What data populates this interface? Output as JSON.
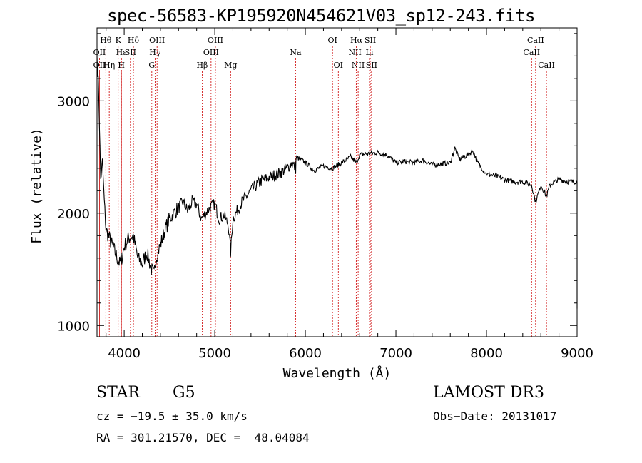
{
  "header": {
    "title": "spec-56583-KP195920N454621V03_sp12-243.fits"
  },
  "info": {
    "object_class": "STAR",
    "subclass": "G5",
    "survey": "LAMOST DR3",
    "redshift_line": "cz = −19.5 ± 35.0 km/s",
    "obs_date_line": "Obs−Date: 20131017",
    "coord_line": "RA = 301.21570, DEC =  48.04084"
  },
  "chart_data": {
    "type": "line",
    "xlabel": "Wavelength (Å)",
    "ylabel": "Flux (relative)",
    "xlim": [
      3700,
      9000
    ],
    "ylim": [
      900,
      3650
    ],
    "x_ticks": [
      4000,
      5000,
      6000,
      7000,
      8000,
      9000
    ],
    "y_ticks": [
      1000,
      2000,
      3000
    ],
    "grid": false,
    "line_color": "#000000",
    "marker_color": "#cc0000",
    "lines": [
      {
        "label": "Hθ",
        "x": 3797,
        "row": 0
      },
      {
        "label": "OII",
        "x": 3727,
        "row": 1
      },
      {
        "label": "OII",
        "x": 3727,
        "row": 2
      },
      {
        "label": "K",
        "x": 3934,
        "row": 0
      },
      {
        "label": "Hε",
        "x": 3970,
        "row": 1
      },
      {
        "label": "SII",
        "x": 4069,
        "row": 1
      },
      {
        "label": "Hη",
        "x": 3835,
        "row": 2
      },
      {
        "label": "H",
        "x": 3969,
        "row": 2
      },
      {
        "label": "Hδ",
        "x": 4102,
        "row": 0
      },
      {
        "label": "OIII",
        "x": 4363,
        "row": 0
      },
      {
        "label": "Hγ",
        "x": 4341,
        "row": 1
      },
      {
        "label": "G",
        "x": 4305,
        "row": 2
      },
      {
        "label": "Hβ",
        "x": 4861,
        "row": 2
      },
      {
        "label": "OIII",
        "x": 5007,
        "row": 0
      },
      {
        "label": "OIII",
        "x": 4959,
        "row": 1
      },
      {
        "label": "Mg",
        "x": 5175,
        "row": 2
      },
      {
        "label": "Na",
        "x": 5893,
        "row": 1
      },
      {
        "label": "OI",
        "x": 6300,
        "row": 0
      },
      {
        "label": "OI",
        "x": 6364,
        "row": 2
      },
      {
        "label": "Hα",
        "x": 6563,
        "row": 0
      },
      {
        "label": "NII",
        "x": 6548,
        "row": 1
      },
      {
        "label": "NII",
        "x": 6583,
        "row": 2
      },
      {
        "label": "SII",
        "x": 6717,
        "row": 0
      },
      {
        "label": "Li",
        "x": 6708,
        "row": 1
      },
      {
        "label": "SII",
        "x": 6731,
        "row": 2
      },
      {
        "label": "CaII",
        "x": 8542,
        "row": 0
      },
      {
        "label": "CaII",
        "x": 8498,
        "row": 1
      },
      {
        "label": "CaII",
        "x": 8662,
        "row": 2
      }
    ],
    "spectrum": {
      "x": [
        3700,
        3720,
        3740,
        3760,
        3780,
        3800,
        3850,
        3900,
        3950,
        3980,
        4000,
        4050,
        4100,
        4150,
        4200,
        4250,
        4300,
        4330,
        4350,
        4400,
        4450,
        4500,
        4550,
        4600,
        4650,
        4700,
        4750,
        4800,
        4850,
        4900,
        4950,
        5000,
        5050,
        5100,
        5150,
        5175,
        5200,
        5300,
        5400,
        5500,
        5600,
        5700,
        5800,
        5850,
        5893,
        5900,
        6000,
        6100,
        6200,
        6300,
        6400,
        6500,
        6563,
        6600,
        6700,
        6800,
        6900,
        7000,
        7100,
        7200,
        7300,
        7400,
        7500,
        7600,
        7650,
        7700,
        7800,
        7850,
        7900,
        8000,
        8100,
        8200,
        8300,
        8400,
        8498,
        8542,
        8600,
        8662,
        8700,
        8800,
        8900,
        9000
      ],
      "y": [
        3400,
        3050,
        2300,
        2450,
        2100,
        1850,
        1750,
        1650,
        1550,
        1620,
        1700,
        1780,
        1800,
        1600,
        1550,
        1650,
        1500,
        1450,
        1600,
        1720,
        1850,
        1950,
        2000,
        2050,
        2100,
        2020,
        2100,
        2080,
        1950,
        2000,
        2050,
        2080,
        1950,
        1980,
        1900,
        1650,
        1950,
        2100,
        2200,
        2280,
        2320,
        2350,
        2400,
        2450,
        2400,
        2500,
        2450,
        2380,
        2420,
        2400,
        2450,
        2500,
        2450,
        2520,
        2530,
        2540,
        2520,
        2450,
        2460,
        2450,
        2470,
        2430,
        2440,
        2450,
        2580,
        2480,
        2520,
        2560,
        2450,
        2350,
        2330,
        2300,
        2280,
        2280,
        2250,
        2100,
        2250,
        2150,
        2250,
        2300,
        2280,
        2280
      ]
    }
  }
}
